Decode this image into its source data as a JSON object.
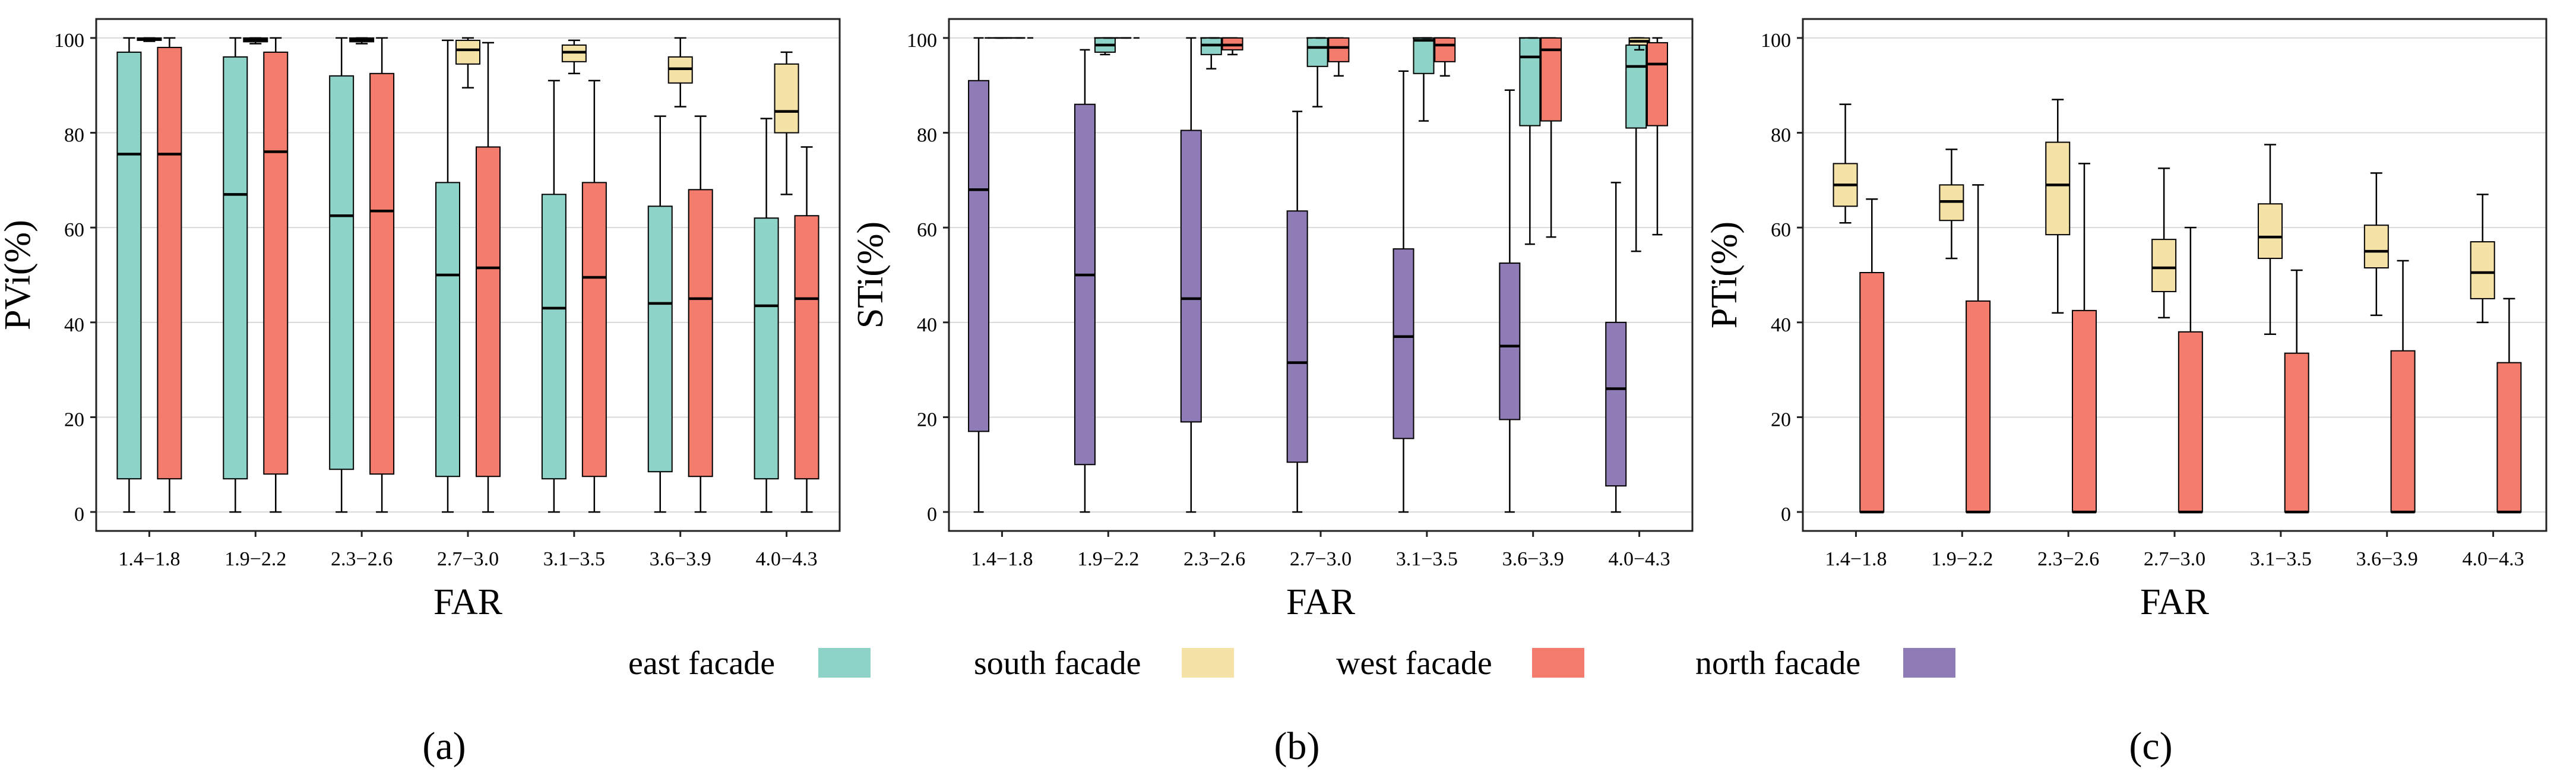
{
  "legend": {
    "items": [
      {
        "label": "east facade",
        "color": "#8dd3c7"
      },
      {
        "label": "south facade",
        "color": "#f5e2a6"
      },
      {
        "label": "west facade",
        "color": "#f47c6d"
      },
      {
        "label": "north facade",
        "color": "#8f7bb5"
      }
    ]
  },
  "chart_data": [
    {
      "type": "box",
      "panel_label": "(a)",
      "xlabel": "FAR",
      "ylabel": "PVi(%)",
      "ylim": [
        -4,
        104
      ],
      "yticks": [
        0,
        20,
        40,
        60,
        80,
        100
      ],
      "grid": true,
      "categories": [
        "1.4−1.8",
        "1.9−2.2",
        "2.3−2.6",
        "2.7−3.0",
        "3.1−3.5",
        "3.6−3.9",
        "4.0−4.3"
      ],
      "series": [
        {
          "key": "east",
          "color": "#8dd3c7",
          "boxes": [
            {
              "min": 0,
              "q1": 7,
              "median": 75.5,
              "q3": 97,
              "max": 100
            },
            {
              "min": 0,
              "q1": 7,
              "median": 67,
              "q3": 96,
              "max": 100
            },
            {
              "min": 0,
              "q1": 9,
              "median": 62.5,
              "q3": 92,
              "max": 100
            },
            {
              "min": 0,
              "q1": 7.5,
              "median": 50,
              "q3": 69.5,
              "max": 99.5
            },
            {
              "min": 0,
              "q1": 7,
              "median": 43,
              "q3": 67,
              "max": 91
            },
            {
              "min": 0,
              "q1": 8.5,
              "median": 44,
              "q3": 64.5,
              "max": 83.5
            },
            {
              "min": 0,
              "q1": 7,
              "median": 43.5,
              "q3": 62,
              "max": 83
            }
          ]
        },
        {
          "key": "south",
          "color": "#f5e2a6",
          "boxes": [
            {
              "min": 99.3,
              "q1": 99.5,
              "median": 99.8,
              "q3": 100,
              "max": 100
            },
            {
              "min": 98.8,
              "q1": 99.2,
              "median": 99.6,
              "q3": 100,
              "max": 100
            },
            {
              "min": 98.8,
              "q1": 99.2,
              "median": 99.6,
              "q3": 100,
              "max": 100
            },
            {
              "min": 89.5,
              "q1": 94.5,
              "median": 97.5,
              "q3": 99.5,
              "max": 100
            },
            {
              "min": 92.5,
              "q1": 95,
              "median": 97,
              "q3": 98.5,
              "max": 99.5
            },
            {
              "min": 85.5,
              "q1": 90.5,
              "median": 93.5,
              "q3": 96,
              "max": 100
            },
            {
              "min": 67,
              "q1": 80,
              "median": 84.5,
              "q3": 94.5,
              "max": 97
            }
          ]
        },
        {
          "key": "west",
          "color": "#f47c6d",
          "boxes": [
            {
              "min": 0,
              "q1": 7,
              "median": 75.5,
              "q3": 98,
              "max": 100
            },
            {
              "min": 0,
              "q1": 8,
              "median": 76,
              "q3": 97,
              "max": 100
            },
            {
              "min": 0,
              "q1": 8,
              "median": 63.5,
              "q3": 92.5,
              "max": 100
            },
            {
              "min": 0,
              "q1": 7.5,
              "median": 51.5,
              "q3": 77,
              "max": 99
            },
            {
              "min": 0,
              "q1": 7.5,
              "median": 49.5,
              "q3": 69.5,
              "max": 91
            },
            {
              "min": 0,
              "q1": 7.5,
              "median": 45,
              "q3": 68,
              "max": 83.5
            },
            {
              "min": 0,
              "q1": 7,
              "median": 45,
              "q3": 62.5,
              "max": 77
            }
          ]
        }
      ]
    },
    {
      "type": "box",
      "panel_label": "(b)",
      "xlabel": "FAR",
      "ylabel": "STi(%)",
      "ylim": [
        -4,
        104
      ],
      "yticks": [
        0,
        20,
        40,
        60,
        80,
        100
      ],
      "grid": true,
      "categories": [
        "1.4−1.8",
        "1.9−2.2",
        "2.3−2.6",
        "2.7−3.0",
        "3.1−3.5",
        "3.6−3.9",
        "4.0−4.3"
      ],
      "series": [
        {
          "key": "east",
          "color": "#8dd3c7",
          "boxes": [
            {
              "min": 100,
              "q1": 100,
              "median": 100,
              "q3": 100,
              "max": 100
            },
            {
              "min": 96.5,
              "q1": 97,
              "median": 98.5,
              "q3": 100,
              "max": 100
            },
            {
              "min": 93.5,
              "q1": 96.5,
              "median": 98.5,
              "q3": 100,
              "max": 100
            },
            {
              "min": 85.5,
              "q1": 94,
              "median": 98,
              "q3": 100,
              "max": 100
            },
            {
              "min": 82.5,
              "q1": 92.5,
              "median": 99.5,
              "q3": 100,
              "max": 100
            },
            {
              "min": 56.5,
              "q1": 81.5,
              "median": 96,
              "q3": 100,
              "max": 100
            },
            {
              "min": 55,
              "q1": 81,
              "median": 94,
              "q3": 98.5,
              "max": 100
            }
          ]
        },
        {
          "key": "south",
          "color": "#f5e2a6",
          "boxes": [
            {
              "min": 100,
              "q1": 100,
              "median": 100,
              "q3": 100,
              "max": 100
            },
            {
              "min": 100,
              "q1": 100,
              "median": 100,
              "q3": 100,
              "max": 100
            },
            {
              "min": 100,
              "q1": 100,
              "median": 100,
              "q3": 100,
              "max": 100
            },
            {
              "min": 100,
              "q1": 100,
              "median": 100,
              "q3": 100,
              "max": 100
            },
            {
              "min": 100,
              "q1": 100,
              "median": 100,
              "q3": 100,
              "max": 100
            },
            {
              "min": 100,
              "q1": 100,
              "median": 100,
              "q3": 100,
              "max": 100
            },
            {
              "min": 97.5,
              "q1": 98.5,
              "median": 99.3,
              "q3": 100,
              "max": 100
            }
          ]
        },
        {
          "key": "west",
          "color": "#f47c6d",
          "boxes": [
            {
              "min": 100,
              "q1": 100,
              "median": 100,
              "q3": 100,
              "max": 100
            },
            {
              "min": 100,
              "q1": 100,
              "median": 100,
              "q3": 100,
              "max": 100
            },
            {
              "min": 96.5,
              "q1": 97.5,
              "median": 98.5,
              "q3": 100,
              "max": 100
            },
            {
              "min": 92,
              "q1": 95,
              "median": 98,
              "q3": 100,
              "max": 100
            },
            {
              "min": 92,
              "q1": 95,
              "median": 98.5,
              "q3": 100,
              "max": 100
            },
            {
              "min": 58,
              "q1": 82.5,
              "median": 97.5,
              "q3": 100,
              "max": 100
            },
            {
              "min": 58.5,
              "q1": 81.5,
              "median": 94.5,
              "q3": 99,
              "max": 100
            }
          ]
        },
        {
          "key": "north",
          "color": "#8f7bb5",
          "boxes": [
            {
              "min": 0,
              "q1": 17,
              "median": 68,
              "q3": 91,
              "max": 100
            },
            {
              "min": 0,
              "q1": 10,
              "median": 50,
              "q3": 86,
              "max": 97.5
            },
            {
              "min": 0,
              "q1": 19,
              "median": 45,
              "q3": 80.5,
              "max": 100
            },
            {
              "min": 0,
              "q1": 10.5,
              "median": 31.5,
              "q3": 63.5,
              "max": 84.5
            },
            {
              "min": 0,
              "q1": 15.5,
              "median": 37,
              "q3": 55.5,
              "max": 93
            },
            {
              "min": 0,
              "q1": 19.5,
              "median": 35,
              "q3": 52.5,
              "max": 89
            },
            {
              "min": 0,
              "q1": 5.5,
              "median": 26,
              "q3": 40,
              "max": 69.5
            }
          ]
        }
      ]
    },
    {
      "type": "box",
      "panel_label": "(c)",
      "xlabel": "FAR",
      "ylabel": "PTi(%)",
      "ylim": [
        -4,
        104
      ],
      "yticks": [
        0,
        20,
        40,
        60,
        80,
        100
      ],
      "grid": true,
      "categories": [
        "1.4−1.8",
        "1.9−2.2",
        "2.3−2.6",
        "2.7−3.0",
        "3.1−3.5",
        "3.6−3.9",
        "4.0−4.3"
      ],
      "series": [
        {
          "key": "south",
          "color": "#f5e2a6",
          "boxes": [
            {
              "min": 61,
              "q1": 64.5,
              "median": 69,
              "q3": 73.5,
              "max": 86
            },
            {
              "min": 53.5,
              "q1": 61.5,
              "median": 65.5,
              "q3": 69,
              "max": 76.5
            },
            {
              "min": 42,
              "q1": 58.5,
              "median": 69,
              "q3": 78,
              "max": 87
            },
            {
              "min": 41,
              "q1": 46.5,
              "median": 51.5,
              "q3": 57.5,
              "max": 72.5
            },
            {
              "min": 37.5,
              "q1": 53.5,
              "median": 58,
              "q3": 65,
              "max": 77.5
            },
            {
              "min": 41.5,
              "q1": 51.5,
              "median": 55,
              "q3": 60.5,
              "max": 71.5
            },
            {
              "min": 40,
              "q1": 45,
              "median": 50.5,
              "q3": 57,
              "max": 67
            }
          ]
        },
        {
          "key": "west",
          "color": "#f47c6d",
          "boxes": [
            {
              "min": 0,
              "q1": 0,
              "median": 0,
              "q3": 50.5,
              "max": 66
            },
            {
              "min": 0,
              "q1": 0,
              "median": 0,
              "q3": 44.5,
              "max": 69
            },
            {
              "min": 0,
              "q1": 0,
              "median": 0,
              "q3": 42.5,
              "max": 73.5
            },
            {
              "min": 0,
              "q1": 0,
              "median": 0,
              "q3": 38,
              "max": 60
            },
            {
              "min": 0,
              "q1": 0,
              "median": 0,
              "q3": 33.5,
              "max": 51
            },
            {
              "min": 0,
              "q1": 0,
              "median": 0,
              "q3": 34,
              "max": 53
            },
            {
              "min": 0,
              "q1": 0,
              "median": 0,
              "q3": 31.5,
              "max": 45
            }
          ]
        }
      ]
    }
  ]
}
